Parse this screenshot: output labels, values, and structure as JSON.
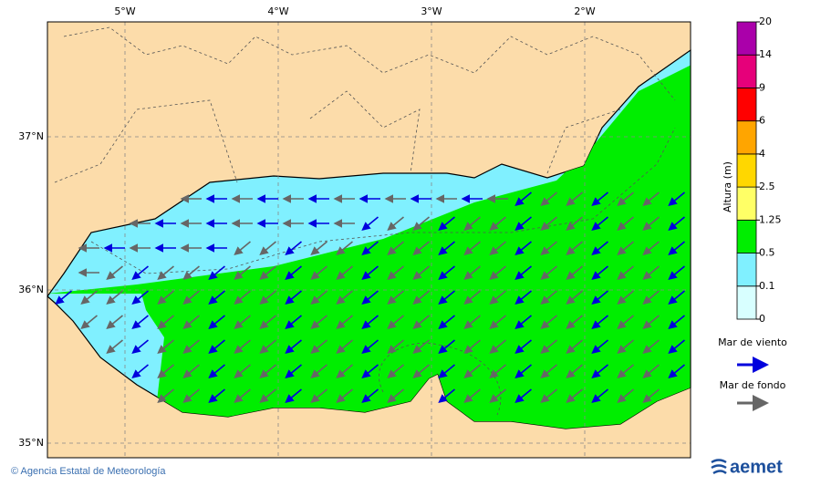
{
  "map": {
    "lon_labels": [
      "5°W",
      "4°W",
      "3°W",
      "2°W"
    ],
    "lat_labels": [
      "37°N",
      "36°N",
      "35°N"
    ]
  },
  "colorbar": {
    "title": "Altura (m)",
    "levels": [
      0,
      0.1,
      0.5,
      1.25,
      2.5,
      4,
      6,
      9,
      14,
      20
    ],
    "colors": [
      "#d8ffff",
      "#80f0ff",
      "#00ee00",
      "#ffff66",
      "#ffd700",
      "#ffa500",
      "#ff0000",
      "#e6007a",
      "#aa00aa"
    ]
  },
  "legend": [
    {
      "label": "Mar de viento",
      "color": "#0000dd"
    },
    {
      "label": "Mar de fondo",
      "color": "#666666"
    }
  ],
  "footer": {
    "credit": "© Agencia Estatal de Meteorología",
    "logo": "aemet"
  }
}
